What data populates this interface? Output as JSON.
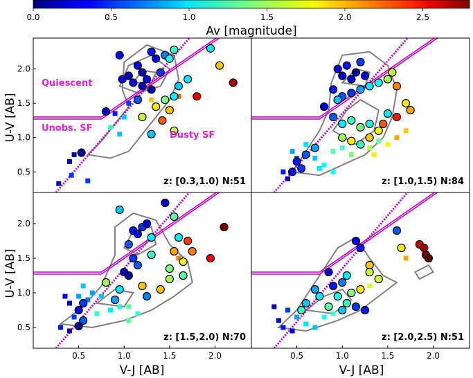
{
  "colorbar": {
    "label": "Av [magnitude]",
    "ticks": [
      "0.0",
      "0.5",
      "1.0",
      "1.5",
      "2.0",
      "2.5"
    ],
    "tick_values": [
      0.0,
      0.5,
      1.0,
      1.5,
      2.0,
      2.5
    ],
    "range": [
      0,
      2.8
    ],
    "colormap": "jet"
  },
  "colors": {
    "selection_line": "#cc00cc",
    "contour": "#808080",
    "region_text": "#e020e0"
  },
  "chart_data": [
    {
      "type": "scatter",
      "panel": "top-left",
      "xlabel": "",
      "ylabel": "U-V [AB]",
      "xlim": [
        0.0,
        2.4
      ],
      "ylim": [
        0.2,
        2.45
      ],
      "xticks": [],
      "yticks": [
        "0.5",
        "1.0",
        "1.5",
        "2.0"
      ],
      "ytick_values": [
        0.5,
        1.0,
        1.5,
        2.0
      ],
      "annotation": "z: [0.3,1.0)   N:51",
      "regions": [
        "Quiescent",
        "Unobs. SF",
        "Dusty SF"
      ],
      "circles": [
        {
          "x": 0.95,
          "y": 2.2,
          "av": 0.3
        },
        {
          "x": 0.98,
          "y": 1.85,
          "av": 0.3
        },
        {
          "x": 1.05,
          "y": 1.9,
          "av": 0.2
        },
        {
          "x": 1.1,
          "y": 1.8,
          "av": 0.25
        },
        {
          "x": 1.15,
          "y": 2.05,
          "av": 0.3
        },
        {
          "x": 1.2,
          "y": 1.95,
          "av": 0.15
        },
        {
          "x": 1.25,
          "y": 1.85,
          "av": 0.35
        },
        {
          "x": 1.3,
          "y": 2.25,
          "av": 0.4
        },
        {
          "x": 1.35,
          "y": 2.15,
          "av": 0.3
        },
        {
          "x": 1.2,
          "y": 1.75,
          "av": 0.2
        },
        {
          "x": 1.3,
          "y": 1.7,
          "av": 0.1
        },
        {
          "x": 1.4,
          "y": 1.95,
          "av": 0.5
        },
        {
          "x": 1.45,
          "y": 2.2,
          "av": 0.7
        },
        {
          "x": 1.5,
          "y": 2.15,
          "av": 1.1
        },
        {
          "x": 1.55,
          "y": 2.28,
          "av": 1.2
        },
        {
          "x": 1.45,
          "y": 1.55,
          "av": 1.4
        },
        {
          "x": 1.5,
          "y": 1.4,
          "av": 1.9
        },
        {
          "x": 1.35,
          "y": 1.45,
          "av": 1.8
        },
        {
          "x": 1.42,
          "y": 1.25,
          "av": 2.2
        },
        {
          "x": 1.55,
          "y": 1.6,
          "av": 1.0
        },
        {
          "x": 1.6,
          "y": 1.75,
          "av": 0.9
        },
        {
          "x": 1.7,
          "y": 1.85,
          "av": 1.0
        },
        {
          "x": 1.8,
          "y": 1.6,
          "av": 2.5
        },
        {
          "x": 1.95,
          "y": 2.3,
          "av": 1.0
        },
        {
          "x": 2.05,
          "y": 2.05,
          "av": 1.9
        },
        {
          "x": 2.2,
          "y": 1.8,
          "av": 2.7
        },
        {
          "x": 1.15,
          "y": 1.55,
          "av": 0.6
        },
        {
          "x": 1.3,
          "y": 1.05,
          "av": 0.9
        },
        {
          "x": 1.55,
          "y": 1.1,
          "av": 1.6
        },
        {
          "x": 0.8,
          "y": 1.38,
          "av": 0.2
        },
        {
          "x": 0.53,
          "y": 0.78,
          "av": 0.1
        },
        {
          "x": 1.2,
          "y": 1.3,
          "av": 1.6
        }
      ],
      "squares": [
        {
          "x": 0.9,
          "y": 1.35,
          "av": 0.4
        },
        {
          "x": 1.0,
          "y": 1.3,
          "av": 0.9
        },
        {
          "x": 1.05,
          "y": 1.5,
          "av": 0.5
        },
        {
          "x": 0.85,
          "y": 1.15,
          "av": 1.2
        },
        {
          "x": 0.95,
          "y": 1.05,
          "av": 0.9
        },
        {
          "x": 0.4,
          "y": 0.65,
          "av": 0.2
        },
        {
          "x": 0.45,
          "y": 0.75,
          "av": 0.1
        },
        {
          "x": 0.42,
          "y": 0.45,
          "av": 0.5
        },
        {
          "x": 0.28,
          "y": 0.33,
          "av": 0.2
        },
        {
          "x": 0.6,
          "y": 0.37,
          "av": 0.5
        },
        {
          "x": 1.6,
          "y": 1.6,
          "av": 2.2
        },
        {
          "x": 1.3,
          "y": 1.55,
          "av": 1.9
        }
      ]
    },
    {
      "type": "scatter",
      "panel": "top-right",
      "xlabel": "",
      "ylabel": "",
      "xlim": [
        0.0,
        2.4
      ],
      "ylim": [
        0.2,
        2.45
      ],
      "annotation": "z: [1.0,1.5)   N:84",
      "circles": [
        {
          "x": 0.95,
          "y": 2.0,
          "av": 0.3
        },
        {
          "x": 1.0,
          "y": 1.9,
          "av": 0.2
        },
        {
          "x": 1.05,
          "y": 2.05,
          "av": 0.4
        },
        {
          "x": 1.1,
          "y": 1.85,
          "av": 0.3
        },
        {
          "x": 1.15,
          "y": 1.95,
          "av": 0.1
        },
        {
          "x": 1.2,
          "y": 2.1,
          "av": 0.5
        },
        {
          "x": 1.25,
          "y": 1.9,
          "av": 0.3
        },
        {
          "x": 0.9,
          "y": 1.7,
          "av": 0.4
        },
        {
          "x": 1.0,
          "y": 1.6,
          "av": 0.6
        },
        {
          "x": 1.1,
          "y": 1.65,
          "av": 0.5
        },
        {
          "x": 1.2,
          "y": 1.7,
          "av": 0.8
        },
        {
          "x": 1.3,
          "y": 1.75,
          "av": 1.0
        },
        {
          "x": 1.4,
          "y": 1.8,
          "av": 1.1
        },
        {
          "x": 1.5,
          "y": 1.85,
          "av": 1.5
        },
        {
          "x": 1.55,
          "y": 1.95,
          "av": 1.6
        },
        {
          "x": 1.6,
          "y": 1.75,
          "av": 2.1
        },
        {
          "x": 1.7,
          "y": 1.5,
          "av": 1.8
        },
        {
          "x": 1.75,
          "y": 1.4,
          "av": 2.0
        },
        {
          "x": 1.6,
          "y": 1.3,
          "av": 2.4
        },
        {
          "x": 0.8,
          "y": 1.45,
          "av": 0.3
        },
        {
          "x": 0.9,
          "y": 1.3,
          "av": 0.6
        },
        {
          "x": 1.0,
          "y": 1.2,
          "av": 1.0
        },
        {
          "x": 1.1,
          "y": 1.25,
          "av": 1.2
        },
        {
          "x": 1.2,
          "y": 1.15,
          "av": 1.4
        },
        {
          "x": 1.3,
          "y": 1.2,
          "av": 1.1
        },
        {
          "x": 1.4,
          "y": 1.1,
          "av": 1.7
        },
        {
          "x": 1.0,
          "y": 1.0,
          "av": 1.5
        },
        {
          "x": 1.1,
          "y": 0.95,
          "av": 1.8
        },
        {
          "x": 1.2,
          "y": 0.9,
          "av": 1.2
        },
        {
          "x": 1.3,
          "y": 1.0,
          "av": 1.9
        },
        {
          "x": 0.7,
          "y": 0.85,
          "av": 0.8
        },
        {
          "x": 0.6,
          "y": 0.75,
          "av": 0.6
        },
        {
          "x": 0.5,
          "y": 0.65,
          "av": 0.4
        },
        {
          "x": 0.45,
          "y": 0.5,
          "av": 0.3
        },
        {
          "x": 0.55,
          "y": 0.55,
          "av": 0.5
        },
        {
          "x": 1.5,
          "y": 1.35,
          "av": 1.0
        },
        {
          "x": 1.45,
          "y": 1.2,
          "av": 2.2
        },
        {
          "x": 0.95,
          "y": 1.55,
          "av": 0.9
        }
      ],
      "squares": [
        {
          "x": 0.45,
          "y": 0.8,
          "av": 0.8
        },
        {
          "x": 0.5,
          "y": 0.7,
          "av": 0.6
        },
        {
          "x": 0.6,
          "y": 0.9,
          "av": 1.0
        },
        {
          "x": 0.7,
          "y": 0.7,
          "av": 0.9
        },
        {
          "x": 0.8,
          "y": 0.6,
          "av": 1.1
        },
        {
          "x": 0.9,
          "y": 0.8,
          "av": 1.3
        },
        {
          "x": 1.0,
          "y": 0.85,
          "av": 1.2
        },
        {
          "x": 1.1,
          "y": 0.75,
          "av": 1.4
        },
        {
          "x": 1.2,
          "y": 0.9,
          "av": 1.6
        },
        {
          "x": 1.3,
          "y": 0.85,
          "av": 1.5
        },
        {
          "x": 1.4,
          "y": 0.95,
          "av": 1.3
        },
        {
          "x": 1.5,
          "y": 0.9,
          "av": 1.7
        },
        {
          "x": 1.35,
          "y": 0.75,
          "av": 1.8
        },
        {
          "x": 1.6,
          "y": 1.0,
          "av": 2.0
        },
        {
          "x": 1.7,
          "y": 1.1,
          "av": 1.9
        },
        {
          "x": 0.35,
          "y": 0.5,
          "av": 0.4
        },
        {
          "x": 0.4,
          "y": 0.4,
          "av": 0.2
        },
        {
          "x": 0.75,
          "y": 0.55,
          "av": 1.0
        },
        {
          "x": 0.9,
          "y": 0.5,
          "av": 1.1
        },
        {
          "x": 1.6,
          "y": 1.3,
          "av": 2.3
        }
      ]
    },
    {
      "type": "scatter",
      "panel": "bottom-left",
      "xlabel": "V-J [AB]",
      "ylabel": "U-V [AB]",
      "xlim": [
        0.0,
        2.4
      ],
      "ylim": [
        0.2,
        2.45
      ],
      "xticks": [
        "0.5",
        "1.0",
        "1.5",
        "2.0"
      ],
      "xtick_values": [
        0.5,
        1.0,
        1.5,
        2.0
      ],
      "yticks": [
        "0.5",
        "1.0",
        "1.5",
        "2.0"
      ],
      "ytick_values": [
        0.5,
        1.0,
        1.5,
        2.0
      ],
      "annotation": "z: [1.5,2.0)   N:70",
      "circles": [
        {
          "x": 0.95,
          "y": 2.2,
          "av": 0.9
        },
        {
          "x": 1.1,
          "y": 1.9,
          "av": 0.4
        },
        {
          "x": 1.15,
          "y": 1.85,
          "av": 0.3
        },
        {
          "x": 1.2,
          "y": 1.95,
          "av": 0.5
        },
        {
          "x": 1.25,
          "y": 2.0,
          "av": 0.3
        },
        {
          "x": 1.05,
          "y": 1.7,
          "av": 0.6
        },
        {
          "x": 1.3,
          "y": 1.8,
          "av": 1.0
        },
        {
          "x": 1.45,
          "y": 2.3,
          "av": 0.2
        },
        {
          "x": 1.55,
          "y": 2.1,
          "av": 1.3
        },
        {
          "x": 1.6,
          "y": 1.8,
          "av": 1.0
        },
        {
          "x": 1.7,
          "y": 1.75,
          "av": 2.3
        },
        {
          "x": 1.75,
          "y": 1.6,
          "av": 2.1
        },
        {
          "x": 1.65,
          "y": 1.45,
          "av": 1.7
        },
        {
          "x": 1.55,
          "y": 1.6,
          "av": 2.0
        },
        {
          "x": 1.95,
          "y": 1.5,
          "av": 2.5
        },
        {
          "x": 2.1,
          "y": 1.95,
          "av": 2.8
        },
        {
          "x": 1.3,
          "y": 1.55,
          "av": 1.2
        },
        {
          "x": 1.1,
          "y": 1.5,
          "av": 0.5
        },
        {
          "x": 1.0,
          "y": 1.3,
          "av": 0.2
        },
        {
          "x": 1.05,
          "y": 1.25,
          "av": 0.1
        },
        {
          "x": 0.8,
          "y": 1.15,
          "av": 1.5
        },
        {
          "x": 0.95,
          "y": 1.05,
          "av": 1.0
        },
        {
          "x": 1.2,
          "y": 1.1,
          "av": 1.9
        },
        {
          "x": 1.4,
          "y": 1.05,
          "av": 1.9
        },
        {
          "x": 1.25,
          "y": 0.95,
          "av": 0.7
        },
        {
          "x": 0.9,
          "y": 0.9,
          "av": 0.8
        },
        {
          "x": 0.55,
          "y": 0.85,
          "av": 0.5
        },
        {
          "x": 0.5,
          "y": 0.75,
          "av": 0.3
        },
        {
          "x": 0.55,
          "y": 0.6,
          "av": 0.6
        },
        {
          "x": 0.5,
          "y": 0.52,
          "av": 0.05
        },
        {
          "x": 1.5,
          "y": 1.35,
          "av": 1.4
        },
        {
          "x": 1.65,
          "y": 1.25,
          "av": 1.3
        },
        {
          "x": 1.15,
          "y": 1.4,
          "av": 0.6
        },
        {
          "x": 1.5,
          "y": 1.2,
          "av": 1.5
        }
      ],
      "squares": [
        {
          "x": 0.35,
          "y": 0.95,
          "av": 0.3
        },
        {
          "x": 0.4,
          "y": 0.85,
          "av": 0.2
        },
        {
          "x": 0.45,
          "y": 0.65,
          "av": 0.5
        },
        {
          "x": 0.6,
          "y": 0.9,
          "av": 0.7
        },
        {
          "x": 0.65,
          "y": 1.0,
          "av": 0.8
        },
        {
          "x": 0.75,
          "y": 0.95,
          "av": 0.9
        },
        {
          "x": 0.85,
          "y": 0.75,
          "av": 1.0
        },
        {
          "x": 0.95,
          "y": 0.8,
          "av": 1.1
        },
        {
          "x": 1.05,
          "y": 0.8,
          "av": 1.3
        },
        {
          "x": 0.7,
          "y": 0.7,
          "av": 1.2
        },
        {
          "x": 0.3,
          "y": 0.5,
          "av": 0.4
        },
        {
          "x": 0.4,
          "y": 0.45,
          "av": 0.2
        },
        {
          "x": 0.55,
          "y": 1.1,
          "av": 0.9
        },
        {
          "x": 0.5,
          "y": 0.95,
          "av": 0.8
        },
        {
          "x": 1.6,
          "y": 1.5,
          "av": 2.1
        },
        {
          "x": 1.05,
          "y": 0.6,
          "av": 1.3
        },
        {
          "x": 1.15,
          "y": 0.7,
          "av": 1.2
        }
      ]
    },
    {
      "type": "scatter",
      "panel": "bottom-right",
      "xlabel": "V-J [AB]",
      "ylabel": "",
      "xlim": [
        0.0,
        2.4
      ],
      "ylim": [
        0.2,
        2.45
      ],
      "xticks": [
        "0.5",
        "1.0",
        "1.5",
        "2.0"
      ],
      "xtick_values": [
        0.5,
        1.0,
        1.5,
        2.0
      ],
      "annotation": "z: [2.0,2.5)   N:51",
      "circles": [
        {
          "x": 1.15,
          "y": 1.75,
          "av": 0.3
        },
        {
          "x": 1.2,
          "y": 1.65,
          "av": 0.4
        },
        {
          "x": 1.6,
          "y": 1.9,
          "av": 0.6
        },
        {
          "x": 1.65,
          "y": 1.65,
          "av": 1.8
        },
        {
          "x": 1.85,
          "y": 1.7,
          "av": 2.6
        },
        {
          "x": 1.9,
          "y": 1.65,
          "av": 2.7
        },
        {
          "x": 1.92,
          "y": 1.55,
          "av": 2.8
        },
        {
          "x": 1.95,
          "y": 1.5,
          "av": 2.9
        },
        {
          "x": 1.3,
          "y": 1.4,
          "av": 1.9
        },
        {
          "x": 1.3,
          "y": 1.3,
          "av": 1.6
        },
        {
          "x": 0.85,
          "y": 1.3,
          "av": 0.2
        },
        {
          "x": 0.9,
          "y": 1.1,
          "av": 0.4
        },
        {
          "x": 1.0,
          "y": 1.15,
          "av": 0.7
        },
        {
          "x": 1.1,
          "y": 1.0,
          "av": 1.4
        },
        {
          "x": 1.2,
          "y": 1.05,
          "av": 1.8
        },
        {
          "x": 0.7,
          "y": 1.05,
          "av": 0.8
        },
        {
          "x": 0.75,
          "y": 0.95,
          "av": 1.0
        },
        {
          "x": 0.95,
          "y": 0.95,
          "av": 1.1
        },
        {
          "x": 1.05,
          "y": 0.85,
          "av": 1.2
        },
        {
          "x": 1.15,
          "y": 0.8,
          "av": 0.5
        },
        {
          "x": 1.25,
          "y": 0.75,
          "av": 0.4
        },
        {
          "x": 0.6,
          "y": 0.85,
          "av": 0.9
        },
        {
          "x": 0.55,
          "y": 0.75,
          "av": 1.2
        },
        {
          "x": 0.85,
          "y": 0.8,
          "av": 1.3
        },
        {
          "x": 1.0,
          "y": 0.75,
          "av": 0.9
        },
        {
          "x": 1.4,
          "y": 1.2,
          "av": 1.6
        },
        {
          "x": 1.05,
          "y": 1.25,
          "av": 1.0
        }
      ],
      "squares": [
        {
          "x": 0.3,
          "y": 0.6,
          "av": 0.3
        },
        {
          "x": 0.35,
          "y": 0.5,
          "av": 0.4
        },
        {
          "x": 0.4,
          "y": 0.75,
          "av": 0.5
        },
        {
          "x": 0.5,
          "y": 0.65,
          "av": 0.8
        },
        {
          "x": 0.6,
          "y": 0.55,
          "av": 1.0
        },
        {
          "x": 0.7,
          "y": 0.5,
          "av": 0.9
        },
        {
          "x": 0.25,
          "y": 0.8,
          "av": 0.2
        },
        {
          "x": 0.45,
          "y": 0.45,
          "av": 0.3
        },
        {
          "x": 0.8,
          "y": 0.65,
          "av": 1.1
        },
        {
          "x": 0.9,
          "y": 0.7,
          "av": 1.2
        },
        {
          "x": 1.7,
          "y": 1.5,
          "av": 2.0
        },
        {
          "x": 1.3,
          "y": 1.1,
          "av": 1.6
        }
      ]
    }
  ]
}
